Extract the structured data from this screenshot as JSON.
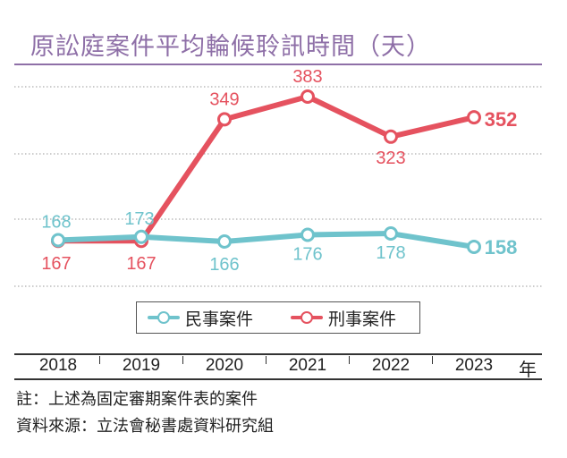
{
  "title": "原訟庭案件平均輪候聆訊時間（天）",
  "note": "註：上述為固定審期案件表的案件",
  "source": "資料來源：立法會秘書處資料研究組",
  "year_unit": "年",
  "legend": {
    "civil": "民事案件",
    "criminal": "刑事案件"
  },
  "colors": {
    "civil": "#6fc3cc",
    "criminal": "#e5525f",
    "title": "#8e6fa7"
  },
  "chart_data": {
    "type": "line",
    "x": [
      "2018",
      "2019",
      "2020",
      "2021",
      "2022",
      "2023"
    ],
    "series": [
      {
        "name": "民事案件",
        "key": "civil",
        "values": [
          168,
          173,
          166,
          176,
          178,
          158
        ]
      },
      {
        "name": "刑事案件",
        "key": "criminal",
        "values": [
          167,
          167,
          349,
          383,
          323,
          352
        ]
      }
    ],
    "value_labels": {
      "civil": [
        "168",
        "173",
        "166",
        "176",
        "178",
        "158"
      ],
      "criminal": [
        "167",
        "167",
        "349",
        "383",
        "323",
        "352"
      ]
    },
    "grid": "horizontal-dotted",
    "legend_position": "bottom-center"
  }
}
